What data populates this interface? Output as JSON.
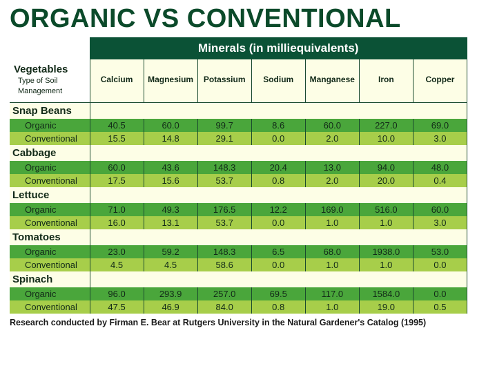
{
  "title_text": "ORGANIC VS CONVENTIONAL",
  "title_color": "#0b4a2a",
  "header_band_text": "Minerals (in milliequivalents)",
  "header_band_bg": "#0b5236",
  "row_header_title": "Vegetables",
  "row_header_sub1": "Type of Soil",
  "row_header_sub2": "Management",
  "columns": [
    "Calcium",
    "Magnesium",
    "Potassium",
    "Sodium",
    "Manganese",
    "Iron",
    "Copper"
  ],
  "column_header_bg": "#fdfee6",
  "border_color": "#1a4a2e",
  "organic_row_bg": "#4aa63b",
  "conventional_row_bg": "#a7ce4a",
  "vegname_bg": "#fdfee6",
  "text_color": "#122a18",
  "vegetables": [
    {
      "name": "Snap Beans",
      "organic": [
        "40.5",
        "60.0",
        "99.7",
        "8.6",
        "60.0",
        "227.0",
        "69.0"
      ],
      "conventional": [
        "15.5",
        "14.8",
        "29.1",
        "0.0",
        "2.0",
        "10.0",
        "3.0"
      ]
    },
    {
      "name": "Cabbage",
      "organic": [
        "60.0",
        "43.6",
        "148.3",
        "20.4",
        "13.0",
        "94.0",
        "48.0"
      ],
      "conventional": [
        "17.5",
        "15.6",
        "53.7",
        "0.8",
        "2.0",
        "20.0",
        "0.4"
      ]
    },
    {
      "name": "Lettuce",
      "organic": [
        "71.0",
        "49.3",
        "176.5",
        "12.2",
        "169.0",
        "516.0",
        "60.0"
      ],
      "conventional": [
        "16.0",
        "13.1",
        "53.7",
        "0.0",
        "1.0",
        "1.0",
        "3.0"
      ]
    },
    {
      "name": "Tomatoes",
      "organic": [
        "23.0",
        "59.2",
        "148.3",
        "6.5",
        "68.0",
        "1938.0",
        "53.0"
      ],
      "conventional": [
        "4.5",
        "4.5",
        "58.6",
        "0.0",
        "1.0",
        "1.0",
        "0.0"
      ]
    },
    {
      "name": "Spinach",
      "organic": [
        "96.0",
        "293.9",
        "257.0",
        "69.5",
        "117.0",
        "1584.0",
        "0.0"
      ],
      "conventional": [
        "47.5",
        "46.9",
        "84.0",
        "0.8",
        "1.0",
        "19.0",
        "0.5"
      ]
    }
  ],
  "organic_label": "Organic",
  "conventional_label": "Conventional",
  "footer_text": "Research conducted by Firman E. Bear at Rutgers University in the Natural Gardener's Catalog (1995)",
  "footer_color": "#1a1a1a"
}
